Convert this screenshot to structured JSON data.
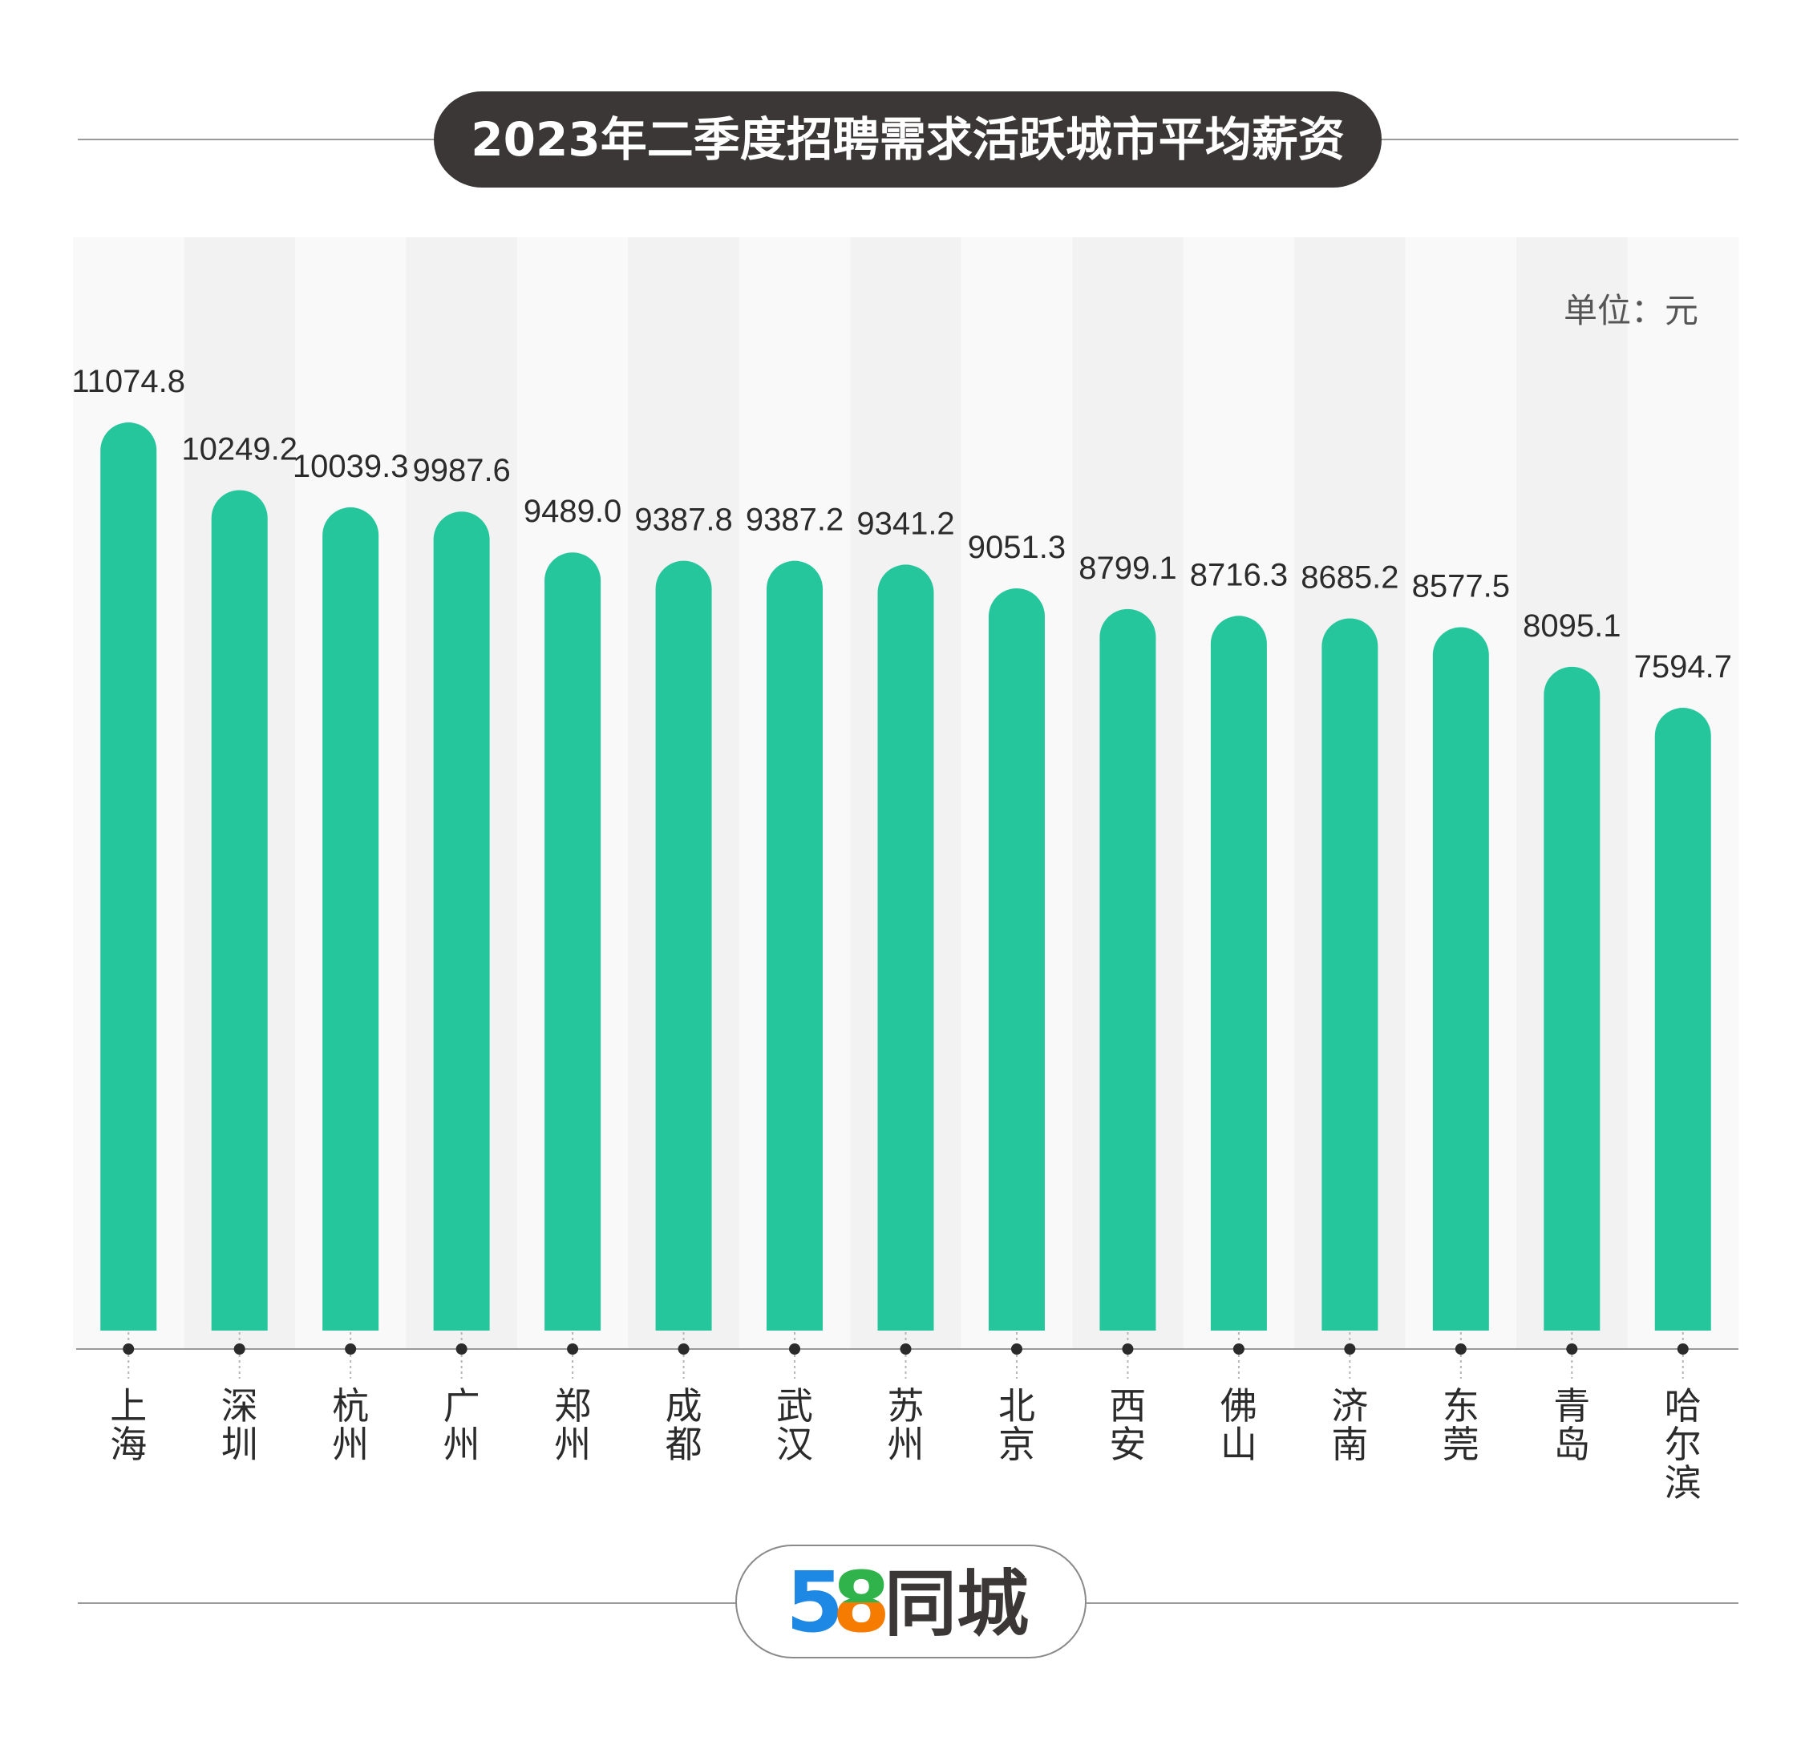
{
  "colors": {
    "bar": "#26c69c",
    "title_bg": "#3a3736",
    "title_text": "#ffffff",
    "label_text": "#2b2b2b",
    "unit_text": "#555555",
    "stripe_dark": "#f2f2f2",
    "stripe_light": "#f9f9f9",
    "logo_5": "#1e88e5",
    "logo_8_top": "#2fb34a",
    "logo_8_bottom": "#f57c00",
    "logo_text": "#3a3736"
  },
  "chart_data": {
    "type": "bar",
    "title": "2023年二季度招聘需求活跃城市平均薪资",
    "unit": "单位：元",
    "categories": [
      "上海",
      "深圳",
      "杭州",
      "广州",
      "郑州",
      "成都",
      "武汉",
      "苏州",
      "北京",
      "西安",
      "佛山",
      "济南",
      "东莞",
      "青岛",
      "哈尔滨"
    ],
    "values": [
      11074.8,
      10249.2,
      10039.3,
      9987.6,
      9489.0,
      9387.8,
      9387.2,
      9341.2,
      9051.3,
      8799.1,
      8716.3,
      8685.2,
      8577.5,
      8095.1,
      7594.7
    ],
    "value_labels": [
      "11074.8",
      "10249.2",
      "10039.3",
      "9987.6",
      "9489.0",
      "9387.8",
      "9387.2",
      "9341.2",
      "9051.3",
      "8799.1",
      "8716.3",
      "8685.2",
      "8577.5",
      "8095.1",
      "7594.7"
    ],
    "ylim": [
      0,
      11074.8
    ],
    "grid": false,
    "legend": "none"
  },
  "logo": {
    "digits": "58",
    "text": "同城"
  }
}
